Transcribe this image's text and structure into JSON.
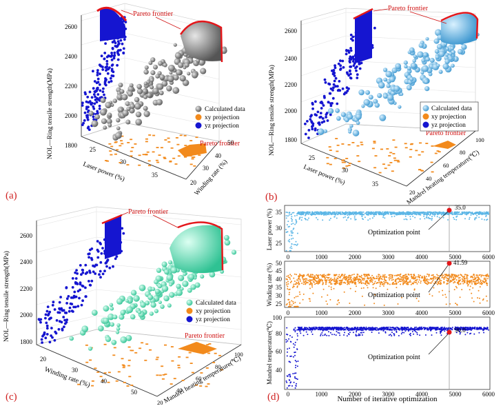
{
  "panels": {
    "a": {
      "letter": "(a)",
      "zlabel": "NOL—Ring tensile strength(MPa)",
      "xlabel": "Laser power (%)",
      "ylabel": "Winding  rate (%)",
      "zticks": [
        "1800",
        "2000",
        "2200",
        "2400",
        "2600"
      ],
      "xticks": [
        "25",
        "30",
        "35"
      ],
      "yticks": [
        "20",
        "30",
        "40",
        "50"
      ],
      "pareto_top": "Pareto frontier",
      "pareto_floor": "Pareto frontier",
      "legend": [
        "Calculated data",
        "xy   projection",
        "yz   projection"
      ]
    },
    "b": {
      "letter": "(b)",
      "zlabel": "NOL—Ring tensile strength(MPa)",
      "xlabel": "Laser power (%)",
      "ylabel": "Mandrel heating temperature(℃)",
      "zticks": [
        "1800",
        "2000",
        "2200",
        "2400",
        "2600"
      ],
      "xticks": [
        "25",
        "30",
        "35"
      ],
      "yticks": [
        "20",
        "40",
        "60",
        "80",
        "100"
      ],
      "pareto_top": "Pareto frontier",
      "pareto_floor": "Pareto frontier",
      "legend": [
        "Calculated data",
        "xy   projection",
        "yz   projection"
      ]
    },
    "c": {
      "letter": "(c)",
      "zlabel": "NOL—Ring tensile strength(MPa)",
      "xlabel": "Winding  rate (%)",
      "ylabel": "Mandrel heating temperature(℃)",
      "zticks": [
        "1800",
        "2000",
        "2200",
        "2400",
        "2600"
      ],
      "xticks": [
        "20",
        "30",
        "40",
        "50"
      ],
      "yticks": [
        "20",
        "40",
        "60",
        "80",
        "100"
      ],
      "pareto_top": "Pareto frontier",
      "pareto_floor": "Pareto frontier",
      "legend": [
        "Calculated data",
        "xy   projection",
        "yz   projection"
      ]
    },
    "d": {
      "letter": "(d)",
      "xlabel": "Number of iterative optimization",
      "xticks": [
        "0",
        "1000",
        "2000",
        "3000",
        "4000",
        "5000",
        "6000"
      ],
      "subplots": [
        {
          "ylabel": "Laser power (%)",
          "yticks": [
            "25",
            "30",
            "35"
          ],
          "annotation": "Optimization point",
          "value": "35.0"
        },
        {
          "ylabel": "Winding  rate (%)",
          "yticks": [
            "25",
            "30",
            "35",
            "40",
            "45",
            "50"
          ],
          "annotation": "Optimization point",
          "value": "41.59"
        },
        {
          "ylabel": "Mandrel temperature(℃)",
          "yticks": [
            "40",
            "60",
            "80",
            "100"
          ],
          "annotation": "Optimization point",
          "value": "90.0"
        }
      ]
    }
  },
  "colors": {
    "gray": "#7a7a7a",
    "blue": "#1515d0",
    "orange": "#f28a1c",
    "lightblue": "#5cb6e6",
    "teal": "#5fdcb6",
    "red": "#e3171b"
  },
  "chart_data": [
    {
      "type": "scatter",
      "panel": "a",
      "note": "3D scatter of NOL-ring tensile strength vs laser power and winding rate",
      "zlim": [
        1700,
        2700
      ],
      "xlim": [
        22,
        38
      ],
      "ylim": [
        15,
        55
      ],
      "grid": true,
      "legend_position": "right"
    },
    {
      "type": "scatter",
      "panel": "b",
      "note": "3D scatter vs laser power and mandrel heating temperature",
      "zlim": [
        1700,
        2700
      ],
      "xlim": [
        22,
        38
      ],
      "ylim": [
        15,
        105
      ],
      "grid": true,
      "legend_position": "right"
    },
    {
      "type": "scatter",
      "panel": "c",
      "note": "3D scatter vs winding rate and mandrel heating temperature",
      "zlim": [
        1700,
        2700
      ],
      "xlim": [
        15,
        55
      ],
      "ylim": [
        15,
        105
      ],
      "grid": true,
      "legend_position": "right"
    },
    {
      "type": "scatter",
      "panel": "d1",
      "x_range": [
        0,
        6000
      ],
      "ylim": [
        22,
        37
      ],
      "optimum": {
        "x": 4800,
        "y": 35.0
      }
    },
    {
      "type": "scatter",
      "panel": "d2",
      "x_range": [
        0,
        6000
      ],
      "ylim": [
        23,
        51
      ],
      "optimum": {
        "x": 4800,
        "y": 41.59
      }
    },
    {
      "type": "scatter",
      "panel": "d3",
      "x_range": [
        0,
        6000
      ],
      "ylim": [
        20,
        100
      ],
      "optimum": {
        "x": 4800,
        "y": 90.0
      }
    }
  ]
}
